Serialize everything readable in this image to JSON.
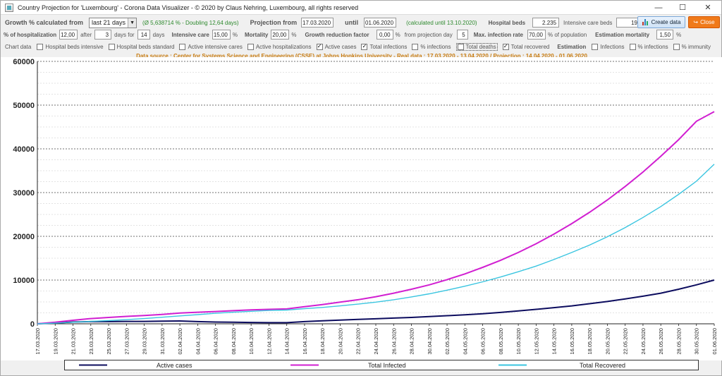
{
  "window": {
    "title": "Country Projection for 'Luxembourg' - Corona Data Visualizer - © 2020 by Claus Nehring, Luxembourg, all rights reserved",
    "minimize": "—",
    "maximize": "☐",
    "close": "✕"
  },
  "row1": {
    "growth_label": "Growth % calculated from",
    "growth_value": "last 21 days",
    "growth_note": "(Ø 5,638714 % - Doubling 12,64 days)",
    "projection_label": "Projection from",
    "projection_from": "17.03.2020",
    "until_label": "until",
    "until_value": "01.06.2020",
    "calc_note": "(calculated until 13.10.2020)",
    "hospital_beds_label": "Hospital beds",
    "hospital_beds_value": "2.235",
    "icu_beds_label": "Intensive care beds",
    "icu_beds_value": "199",
    "create_button": "Create data",
    "close_button": "Close"
  },
  "row2": {
    "hosp_label": "% of hospitalization",
    "hosp_value": "12,00",
    "after_label": "after",
    "after_value": "3",
    "days_for_label": "days for",
    "days_for_value": "14",
    "days_label": "days",
    "icu_label": "Intensive care",
    "icu_value": "15,00",
    "pct1": "%",
    "mortality_label": "Mortality",
    "mortality_value": "20,00",
    "pct2": "%",
    "growth_red_label": "Growth reduction factor",
    "growth_red_value": "0,00",
    "pct3": "%",
    "from_day_label": "from projection day",
    "from_day_value": "5",
    "max_inf_label": "Max. infection rate",
    "max_inf_value": "70,00",
    "pop_label": "% of population",
    "est_mort_label": "Estimation mortality",
    "est_mort_value": "1,50",
    "pct4": "%"
  },
  "row3": {
    "chart_data_label": "Chart data",
    "items": [
      {
        "label": "Hospital beds intensive",
        "checked": " "
      },
      {
        "label": "Hospital beds standard",
        "checked": " "
      },
      {
        "label": "Active intensive cares",
        "checked": " "
      },
      {
        "label": "Active hospitalizations",
        "checked": " "
      },
      {
        "label": "Active cases",
        "checked": "✓"
      },
      {
        "label": "Total infections",
        "checked": "✓"
      },
      {
        "label": "% infections",
        "checked": " "
      },
      {
        "label": "Total deaths",
        "checked": " "
      },
      {
        "label": "Total recovered",
        "checked": "✓"
      }
    ],
    "estimation_label": "Estimation",
    "est_items": [
      {
        "label": "Infections",
        "checked": " "
      },
      {
        "label": "% infections",
        "checked": " "
      },
      {
        "label": "% immunity",
        "checked": " "
      }
    ]
  },
  "source": "Data source : Center for Systems Science and Engineering (CSSE) at Johns Hopkins University  -  Real data : 17.03.2020 - 13.04.2020 / Projection : 14.04.2020 - 01.06.2020",
  "chart_data": {
    "type": "line",
    "ylim": [
      0,
      60000
    ],
    "yticks": [
      "0",
      "10000",
      "20000",
      "30000",
      "40000",
      "50000",
      "60000"
    ],
    "x": [
      "17.03.2020",
      "19.03.2020",
      "21.03.2020",
      "23.03.2020",
      "25.03.2020",
      "27.03.2020",
      "29.03.2020",
      "31.03.2020",
      "02.04.2020",
      "04.04.2020",
      "06.04.2020",
      "08.04.2020",
      "10.04.2020",
      "12.04.2020",
      "14.04.2020",
      "16.04.2020",
      "18.04.2020",
      "20.04.2020",
      "22.04.2020",
      "24.04.2020",
      "26.04.2020",
      "28.04.2020",
      "30.04.2020",
      "02.05.2020",
      "04.05.2020",
      "06.05.2020",
      "08.05.2020",
      "10.05.2020",
      "12.05.2020",
      "14.05.2020",
      "16.05.2020",
      "18.05.2020",
      "20.05.2020",
      "22.05.2020",
      "24.05.2020",
      "26.05.2020",
      "28.05.2020",
      "30.05.2020",
      "01.06.2020"
    ],
    "series": [
      {
        "name": "Active cases",
        "color": "#0c0c5e",
        "values": [
          0,
          180,
          400,
          500,
          500,
          550,
          550,
          600,
          650,
          500,
          400,
          350,
          300,
          250,
          250,
          500,
          700,
          850,
          1000,
          1150,
          1300,
          1450,
          1650,
          1850,
          2050,
          2300,
          2600,
          2950,
          3300,
          3700,
          4100,
          4600,
          5100,
          5700,
          6300,
          7000,
          7900,
          8900,
          10000
        ]
      },
      {
        "name": "Total Infected",
        "color": "#d11fd1",
        "values": [
          0,
          350,
          800,
          1200,
          1450,
          1700,
          1900,
          2150,
          2450,
          2650,
          2800,
          3000,
          3200,
          3300,
          3400,
          3900,
          4400,
          4950,
          5500,
          6200,
          7000,
          7900,
          8900,
          10100,
          11400,
          12900,
          14500,
          16300,
          18300,
          20500,
          22900,
          25500,
          28300,
          31400,
          34700,
          38300,
          42100,
          46300,
          48500
        ]
      },
      {
        "name": "Total Recovered",
        "color": "#3ac5e0",
        "values": [
          0,
          150,
          350,
          550,
          750,
          950,
          1200,
          1500,
          1800,
          2100,
          2400,
          2650,
          2850,
          3050,
          3150,
          3450,
          3750,
          4100,
          4500,
          4950,
          5500,
          6150,
          6850,
          7700,
          8600,
          9600,
          10700,
          11900,
          13200,
          14700,
          16300,
          18000,
          19900,
          22000,
          24300,
          26800,
          29600,
          32600,
          36500
        ]
      }
    ]
  }
}
